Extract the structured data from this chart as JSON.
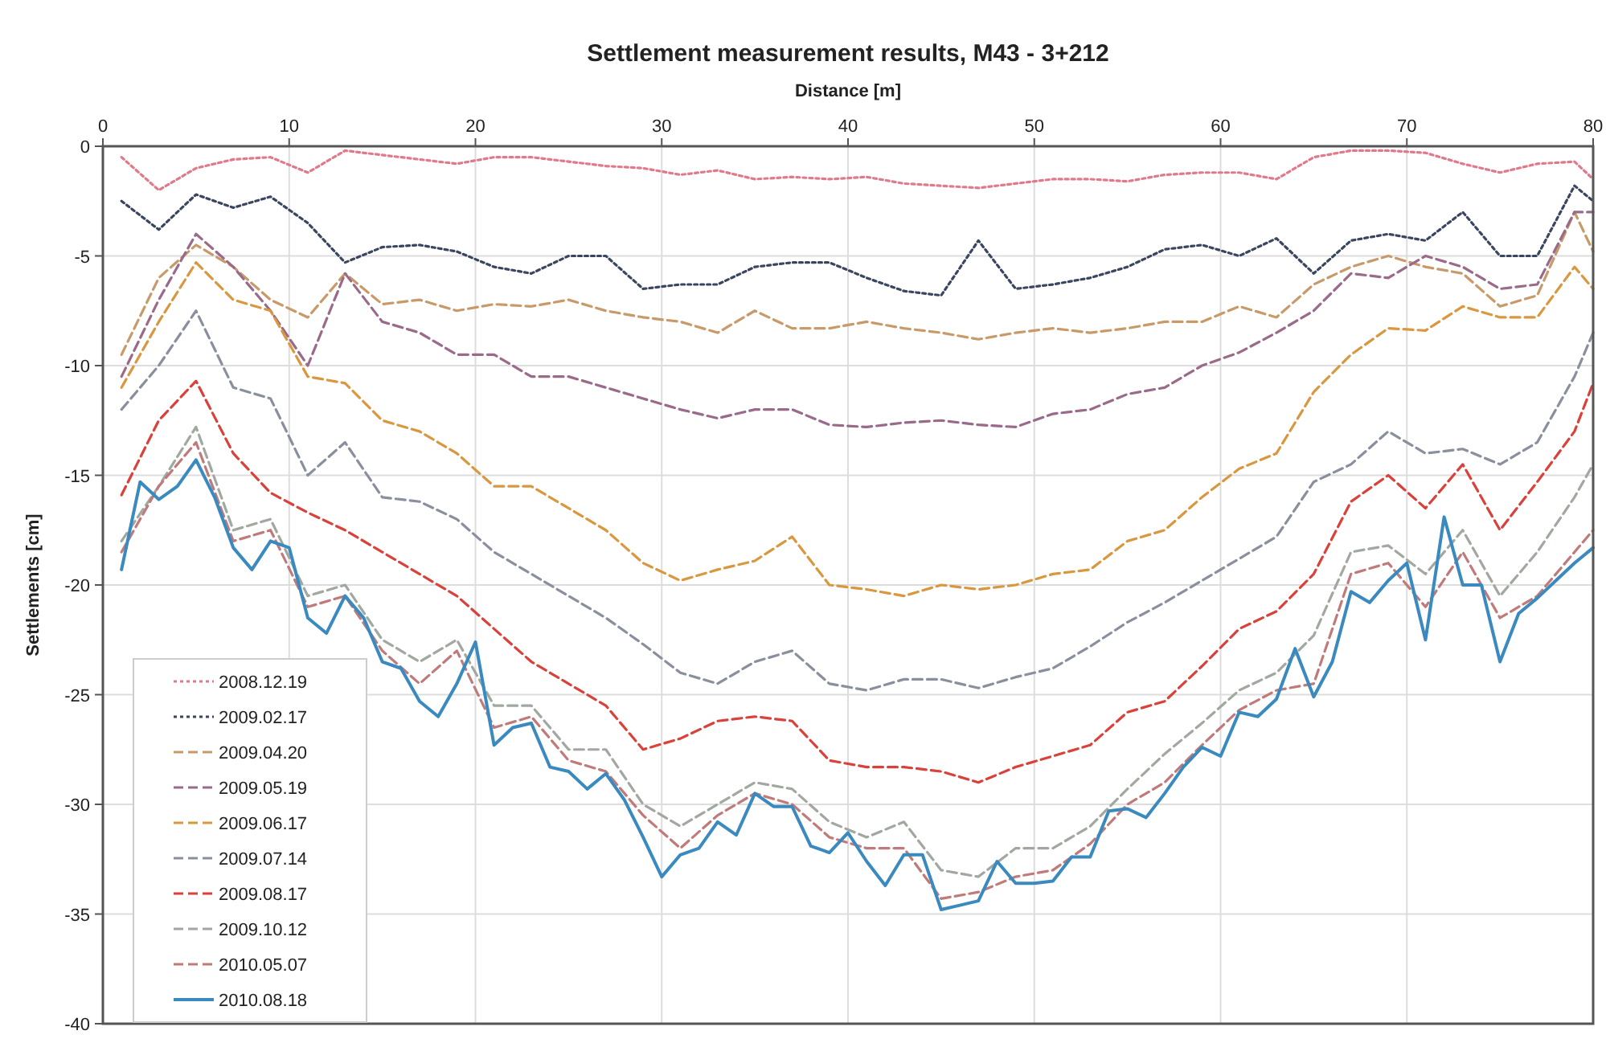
{
  "chart_data": {
    "type": "line",
    "title": "Settlement measurement results,  M43 - 3+212",
    "xlabel": "Distance [m]",
    "ylabel": "Settlements [cm]",
    "x": [
      1,
      3,
      5,
      7,
      9,
      11,
      13,
      15,
      17,
      19,
      21,
      23,
      25,
      27,
      29,
      31,
      33,
      35,
      37,
      39,
      41,
      43,
      45,
      47,
      49,
      51,
      53,
      55,
      57,
      59,
      61,
      63,
      65,
      67,
      69,
      71,
      73,
      75,
      77,
      79,
      80
    ],
    "xlim": [
      0,
      80
    ],
    "xticks": [
      0,
      10,
      20,
      30,
      40,
      50,
      60,
      70,
      80
    ],
    "ylim": [
      -40,
      0
    ],
    "yticks": [
      -40,
      -35,
      -30,
      -25,
      -20,
      -15,
      -10,
      -5,
      0
    ],
    "grid": true,
    "legend": "bottom left",
    "series": [
      {
        "name": "2008.12.19",
        "color": "#e07a8a",
        "line_style": "dotted",
        "values": [
          -0.5,
          -2,
          -1,
          -0.6,
          -0.5,
          -1.2,
          -0.2,
          -0.4,
          -0.6,
          -0.8,
          -0.5,
          -0.5,
          -0.7,
          -0.9,
          -1,
          -1.3,
          -1.1,
          -1.5,
          -1.4,
          -1.5,
          -1.4,
          -1.7,
          -1.8,
          -1.9,
          -1.7,
          -1.5,
          -1.5,
          -1.6,
          -1.3,
          -1.2,
          -1.2,
          -1.5,
          -0.5,
          -0.2,
          -0.2,
          -0.3,
          -0.8,
          -1.2,
          -0.8,
          -0.7,
          -1.5
        ]
      },
      {
        "name": "2009.02.17",
        "color": "#3a4560",
        "line_style": "dotted",
        "values": [
          -2.5,
          -3.8,
          -2.2,
          -2.8,
          -2.3,
          -3.5,
          -5.3,
          -4.6,
          -4.5,
          -4.8,
          -5.5,
          -5.8,
          -5,
          -5,
          -6.5,
          -6.3,
          -6.3,
          -5.5,
          -5.3,
          -5.3,
          -6,
          -6.6,
          -6.8,
          -4.3,
          -6.5,
          -6.3,
          -6,
          -5.5,
          -4.7,
          -4.5,
          -5,
          -4.2,
          -5.8,
          -4.3,
          -4,
          -4.3,
          -3,
          -5,
          -5,
          -1.8,
          -2.5
        ]
      },
      {
        "name": "2009.04.20",
        "color": "#c89a6a",
        "line_style": "dashed",
        "values": [
          -9.5,
          -6,
          -4.5,
          -5.5,
          -7,
          -7.8,
          -5.8,
          -7.2,
          -7,
          -7.5,
          -7.2,
          -7.3,
          -7,
          -7.5,
          -7.8,
          -8,
          -8.5,
          -7.5,
          -8.3,
          -8.3,
          -8,
          -8.3,
          -8.5,
          -8.8,
          -8.5,
          -8.3,
          -8.5,
          -8.3,
          -8,
          -8,
          -7.3,
          -7.8,
          -6.3,
          -5.5,
          -5,
          -5.5,
          -5.8,
          -7.3,
          -6.8,
          -3,
          -4.8
        ]
      },
      {
        "name": "2009.05.19",
        "color": "#9a6a8a",
        "line_style": "dashed",
        "values": [
          -10.5,
          -7,
          -4,
          -5.5,
          -7.5,
          -10,
          -5.8,
          -8,
          -8.5,
          -9.5,
          -9.5,
          -10.5,
          -10.5,
          -11,
          -11.5,
          -12,
          -12.4,
          -12,
          -12,
          -12.7,
          -12.8,
          -12.6,
          -12.5,
          -12.7,
          -12.8,
          -12.2,
          -12,
          -11.3,
          -11,
          -10,
          -9.4,
          -8.5,
          -7.5,
          -5.8,
          -6,
          -5,
          -5.5,
          -6.5,
          -6.3,
          -3,
          -3
        ]
      },
      {
        "name": "2009.06.17",
        "color": "#d9973f",
        "line_style": "dashed",
        "values": [
          -11,
          -8,
          -5.3,
          -7,
          -7.5,
          -10.5,
          -10.8,
          -12.5,
          -13,
          -14,
          -15.5,
          -15.5,
          -16.5,
          -17.5,
          -19,
          -19.8,
          -19.3,
          -18.9,
          -17.8,
          -20,
          -20.2,
          -20.5,
          -20,
          -20.2,
          -20,
          -19.5,
          -19.3,
          -18,
          -17.5,
          -16,
          -14.7,
          -14,
          -11.2,
          -9.5,
          -8.3,
          -8.4,
          -7.3,
          -7.8,
          -7.8,
          -5.5,
          -6.5
        ]
      },
      {
        "name": "2009.07.14",
        "color": "#8a8f9e",
        "line_style": "dashed",
        "values": [
          -12,
          -10,
          -7.5,
          -11,
          -11.5,
          -15,
          -13.5,
          -16,
          -16.2,
          -17,
          -18.5,
          -19.5,
          -20.5,
          -21.5,
          -22.7,
          -24,
          -24.5,
          -23.5,
          -23,
          -24.5,
          -24.8,
          -24.3,
          -24.3,
          -24.7,
          -24.2,
          -23.8,
          -22.8,
          -21.7,
          -20.8,
          -19.8,
          -18.8,
          -17.8,
          -15.3,
          -14.5,
          -13,
          -14,
          -13.8,
          -14.5,
          -13.5,
          -10.5,
          -8.5
        ]
      },
      {
        "name": "2009.08.17",
        "color": "#d9413a",
        "line_style": "dashed",
        "values": [
          -15.9,
          -12.5,
          -10.7,
          -14,
          -15.8,
          -16.7,
          -17.5,
          -18.5,
          -19.5,
          -20.5,
          -22,
          -23.5,
          -24.5,
          -25.5,
          -27.5,
          -27,
          -26.2,
          -26,
          -26.2,
          -28,
          -28.3,
          -28.3,
          -28.5,
          -29,
          -28.3,
          -27.8,
          -27.3,
          -25.8,
          -25.3,
          -23.7,
          -22,
          -21.2,
          -19.5,
          -16.2,
          -15,
          -16.5,
          -14.5,
          -17.5,
          -15.3,
          -13,
          -10.8
        ]
      },
      {
        "name": "2009.10.12",
        "color": "#a0a8a0",
        "line_style": "dashed",
        "values": [
          -18,
          -15.5,
          -12.8,
          -17.5,
          -17,
          -20.5,
          -20,
          -22.5,
          -23.5,
          -22.5,
          -25.5,
          -25.5,
          -27.5,
          -27.5,
          -30,
          -31,
          -30,
          -29,
          -29.3,
          -30.8,
          -31.5,
          -30.8,
          -33,
          -33.3,
          -32,
          -32,
          -31,
          -29.3,
          -27.7,
          -26.3,
          -24.8,
          -24,
          -22.3,
          -18.5,
          -18.2,
          -19.5,
          -17.5,
          -20.5,
          -18.5,
          -16,
          -14.5
        ]
      },
      {
        "name": "2010.05.07",
        "color": "#c07a7a",
        "line_style": "dashed",
        "values": [
          -18.5,
          -15.5,
          -13.5,
          -18,
          -17.5,
          -21,
          -20.5,
          -23,
          -24.5,
          -23,
          -26.5,
          -26,
          -28,
          -28.5,
          -30.5,
          -32,
          -30.5,
          -29.5,
          -30,
          -31.5,
          -32,
          -32,
          -34.3,
          -34,
          -33.3,
          -33,
          -31.8,
          -30,
          -29,
          -27.3,
          -25.7,
          -24.8,
          -24.5,
          -19.5,
          -19,
          -21,
          -18.5,
          -21.5,
          -20.5,
          -18.5,
          -17.5
        ]
      },
      {
        "name": "2010.08.18",
        "color": "#3a8ac0",
        "line_style": "solid",
        "x": [
          1,
          2,
          3,
          4,
          5,
          6,
          7,
          8,
          9,
          10,
          11,
          12,
          13,
          14,
          15,
          16,
          17,
          18,
          19,
          20,
          21,
          22,
          23,
          24,
          25,
          26,
          27,
          28,
          29,
          30,
          31,
          32,
          33,
          34,
          35,
          36,
          37,
          38,
          39,
          40,
          41,
          42,
          43,
          44,
          45,
          46,
          47,
          48,
          49,
          50,
          51,
          52,
          53,
          54,
          55,
          56,
          57,
          58,
          59,
          60,
          61,
          62,
          63,
          64,
          65,
          66,
          67,
          68,
          69,
          70,
          71,
          72,
          73,
          74,
          75,
          76,
          77,
          78,
          79,
          80
        ],
        "values": [
          -19.3,
          -15.3,
          -16.1,
          -15.5,
          -14.3,
          -16,
          -18.3,
          -19.3,
          -18,
          -18.3,
          -21.5,
          -22.2,
          -20.5,
          -21.5,
          -23.5,
          -23.8,
          -25.3,
          -26,
          -24.5,
          -22.6,
          -27.3,
          -26.5,
          -26.3,
          -28.3,
          -28.5,
          -29.3,
          -28.6,
          -29.8,
          -31.5,
          -33.3,
          -32.3,
          -32,
          -30.8,
          -31.4,
          -29.5,
          -30.1,
          -30.1,
          -31.9,
          -32.2,
          -31.3,
          -32.6,
          -33.7,
          -32.3,
          -32.3,
          -34.8,
          -34.6,
          -34.4,
          -32.6,
          -33.6,
          -33.6,
          -33.5,
          -32.4,
          -32.4,
          -30.3,
          -30.2,
          -30.6,
          -29.5,
          -28.3,
          -27.4,
          -27.8,
          -25.8,
          -26,
          -25.2,
          -22.9,
          -25.1,
          -23.5,
          -20.3,
          -20.8,
          -19.8,
          -19,
          -22.5,
          -16.9,
          -20,
          -20,
          -23.5,
          -21.3,
          -20.6,
          -19.8,
          -19,
          -18.3
        ]
      }
    ]
  }
}
